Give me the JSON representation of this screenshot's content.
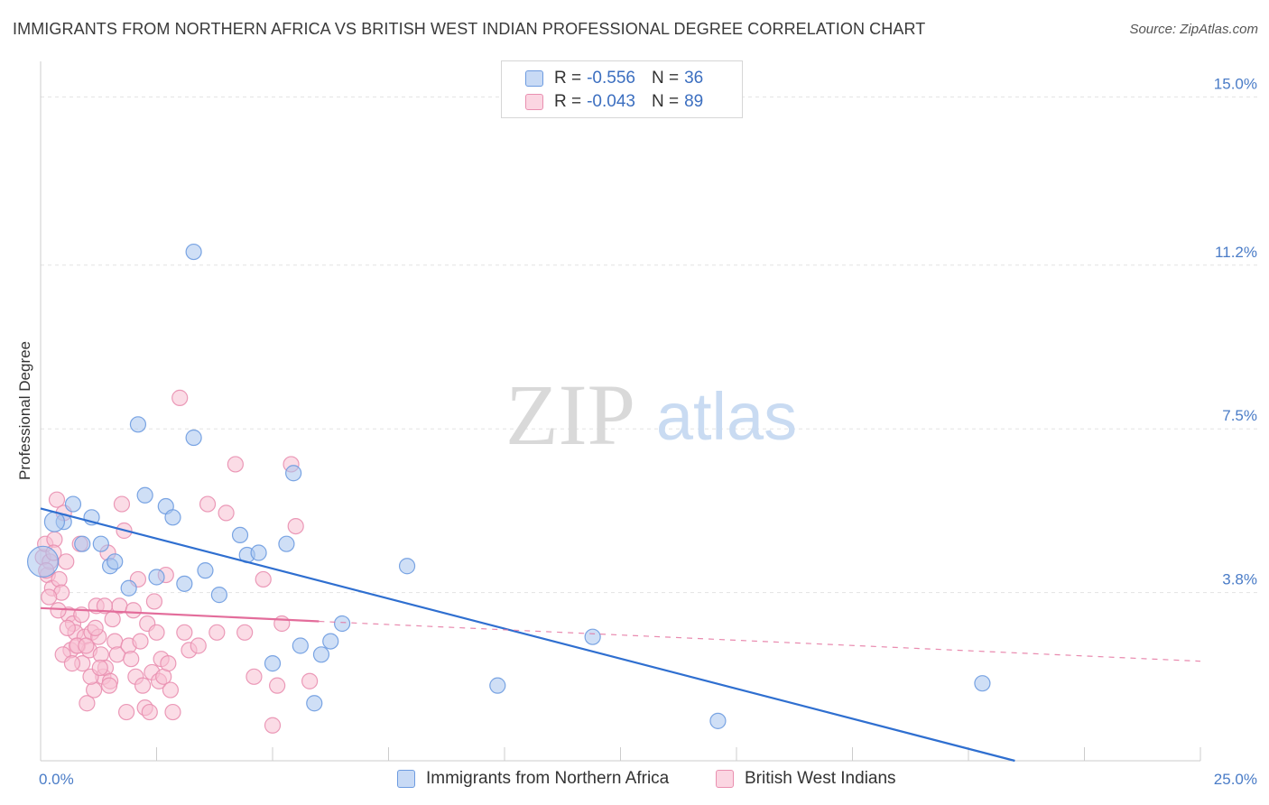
{
  "title": "IMMIGRANTS FROM NORTHERN AFRICA VS BRITISH WEST INDIAN PROFESSIONAL DEGREE CORRELATION CHART",
  "source": "Source: ZipAtlas.com",
  "watermark": {
    "zip": "ZIP",
    "atlas": "atlas"
  },
  "legend": {
    "rows": [
      {
        "r_label": "R =",
        "r_value": "-0.556",
        "n_label": "N =",
        "n_value": "36",
        "color": "#a8c4ee",
        "stroke": "#6d9be0"
      },
      {
        "r_label": "R =",
        "r_value": "-0.043",
        "n_label": "N =",
        "n_value": "89",
        "color": "#f7bfd2",
        "stroke": "#e98fb0"
      }
    ]
  },
  "bottom_legend": [
    {
      "label": "Immigrants from Northern Africa",
      "color": "#a8c4ee",
      "stroke": "#6d9be0"
    },
    {
      "label": "British West Indians",
      "color": "#f7bfd2",
      "stroke": "#e98fb0"
    }
  ],
  "chart_data": {
    "type": "scatter",
    "title": "IMMIGRANTS FROM NORTHERN AFRICA VS BRITISH WEST INDIAN PROFESSIONAL DEGREE CORRELATION CHART",
    "xlabel": "",
    "ylabel": "Professional Degree",
    "xlim": [
      0,
      25
    ],
    "ylim": [
      0,
      15.6
    ],
    "x_tick_labels": [
      "0.0%",
      "25.0%"
    ],
    "y_ticks": [
      3.8,
      7.5,
      11.2,
      15.0
    ],
    "y_tick_labels": [
      "3.8%",
      "7.5%",
      "11.2%",
      "15.0%"
    ],
    "grid": true,
    "legend_position": "top-center",
    "series": [
      {
        "name": "Immigrants from Northern Africa",
        "color": "#6d9be0",
        "fill": "#a8c4ee",
        "trend": {
          "x0": 0.0,
          "y0": 5.7,
          "x1": 21.0,
          "y1": 0.0,
          "style": "solid",
          "color": "#2f6fd0"
        },
        "points": [
          [
            0.05,
            4.5
          ],
          [
            0.5,
            5.4
          ],
          [
            0.7,
            5.8
          ],
          [
            0.9,
            4.9
          ],
          [
            1.1,
            5.5
          ],
          [
            1.3,
            4.9
          ],
          [
            1.5,
            4.4
          ],
          [
            1.6,
            4.5
          ],
          [
            1.9,
            3.9
          ],
          [
            2.1,
            7.6
          ],
          [
            2.25,
            6.0
          ],
          [
            2.5,
            4.15
          ],
          [
            2.7,
            5.75
          ],
          [
            2.85,
            5.5
          ],
          [
            3.1,
            4.0
          ],
          [
            3.3,
            11.5
          ],
          [
            3.3,
            7.3
          ],
          [
            3.55,
            4.3
          ],
          [
            3.85,
            3.75
          ],
          [
            4.3,
            5.1
          ],
          [
            4.45,
            4.65
          ],
          [
            4.7,
            4.7
          ],
          [
            5.0,
            2.2
          ],
          [
            5.3,
            4.9
          ],
          [
            5.45,
            6.5
          ],
          [
            5.6,
            2.6
          ],
          [
            5.9,
            1.3
          ],
          [
            6.05,
            2.4
          ],
          [
            6.25,
            2.7
          ],
          [
            6.5,
            3.1
          ],
          [
            7.9,
            4.4
          ],
          [
            9.85,
            1.7
          ],
          [
            11.9,
            2.8
          ],
          [
            14.6,
            0.9
          ],
          [
            20.3,
            1.75
          ],
          [
            0.3,
            5.4
          ]
        ],
        "sizes": {
          "0": 34,
          "35": 22
        }
      },
      {
        "name": "British West Indians",
        "color": "#e98fb0",
        "fill": "#f7bfd2",
        "trend": {
          "x0": 0.0,
          "y0": 3.45,
          "x1": 6.0,
          "y1": 3.15,
          "style": "solid",
          "color": "#e36d9b",
          "x2": 25.0,
          "y2": 2.25,
          "ext_style": "dashed"
        },
        "points": [
          [
            0.05,
            4.6
          ],
          [
            0.1,
            4.9
          ],
          [
            0.15,
            4.2
          ],
          [
            0.2,
            4.5
          ],
          [
            0.25,
            3.9
          ],
          [
            0.3,
            5.0
          ],
          [
            0.35,
            5.9
          ],
          [
            0.4,
            4.1
          ],
          [
            0.45,
            3.8
          ],
          [
            0.5,
            5.6
          ],
          [
            0.55,
            4.5
          ],
          [
            0.6,
            3.3
          ],
          [
            0.65,
            2.5
          ],
          [
            0.7,
            3.1
          ],
          [
            0.75,
            2.9
          ],
          [
            0.8,
            2.6
          ],
          [
            0.85,
            4.9
          ],
          [
            0.9,
            2.2
          ],
          [
            0.95,
            2.8
          ],
          [
            1.0,
            1.3
          ],
          [
            1.05,
            2.5
          ],
          [
            1.1,
            2.9
          ],
          [
            1.15,
            1.6
          ],
          [
            1.2,
            3.5
          ],
          [
            1.25,
            2.8
          ],
          [
            1.3,
            2.4
          ],
          [
            1.35,
            1.9
          ],
          [
            1.4,
            2.1
          ],
          [
            1.45,
            4.7
          ],
          [
            1.5,
            1.8
          ],
          [
            1.55,
            3.2
          ],
          [
            1.6,
            2.7
          ],
          [
            1.65,
            2.4
          ],
          [
            1.7,
            3.5
          ],
          [
            1.75,
            5.8
          ],
          [
            1.8,
            5.2
          ],
          [
            1.85,
            1.1
          ],
          [
            1.9,
            2.6
          ],
          [
            1.95,
            2.3
          ],
          [
            2.0,
            3.4
          ],
          [
            2.05,
            1.9
          ],
          [
            2.1,
            4.1
          ],
          [
            2.15,
            2.7
          ],
          [
            2.2,
            1.7
          ],
          [
            2.25,
            1.2
          ],
          [
            2.3,
            3.1
          ],
          [
            2.35,
            1.1
          ],
          [
            2.4,
            2.0
          ],
          [
            2.45,
            3.6
          ],
          [
            2.5,
            2.9
          ],
          [
            2.55,
            1.8
          ],
          [
            2.6,
            2.3
          ],
          [
            2.65,
            1.9
          ],
          [
            2.7,
            4.2
          ],
          [
            2.75,
            2.2
          ],
          [
            2.8,
            1.6
          ],
          [
            2.85,
            1.1
          ],
          [
            3.0,
            8.2
          ],
          [
            3.1,
            2.9
          ],
          [
            3.2,
            2.5
          ],
          [
            3.4,
            2.6
          ],
          [
            3.6,
            5.8
          ],
          [
            3.8,
            2.9
          ],
          [
            4.0,
            5.6
          ],
          [
            4.2,
            6.7
          ],
          [
            4.4,
            2.9
          ],
          [
            4.6,
            1.9
          ],
          [
            4.8,
            4.1
          ],
          [
            5.0,
            0.8
          ],
          [
            5.1,
            1.7
          ],
          [
            5.2,
            3.1
          ],
          [
            5.4,
            6.7
          ],
          [
            5.5,
            5.3
          ],
          [
            5.8,
            1.8
          ],
          [
            0.12,
            4.3
          ],
          [
            0.18,
            3.7
          ],
          [
            0.28,
            4.7
          ],
          [
            0.38,
            3.4
          ],
          [
            0.48,
            2.4
          ],
          [
            0.58,
            3.0
          ],
          [
            0.68,
            2.2
          ],
          [
            0.78,
            2.6
          ],
          [
            0.88,
            3.3
          ],
          [
            0.98,
            2.6
          ],
          [
            1.08,
            1.9
          ],
          [
            1.18,
            3.0
          ],
          [
            1.28,
            2.1
          ],
          [
            1.38,
            3.5
          ],
          [
            1.48,
            1.7
          ]
        ]
      }
    ]
  }
}
